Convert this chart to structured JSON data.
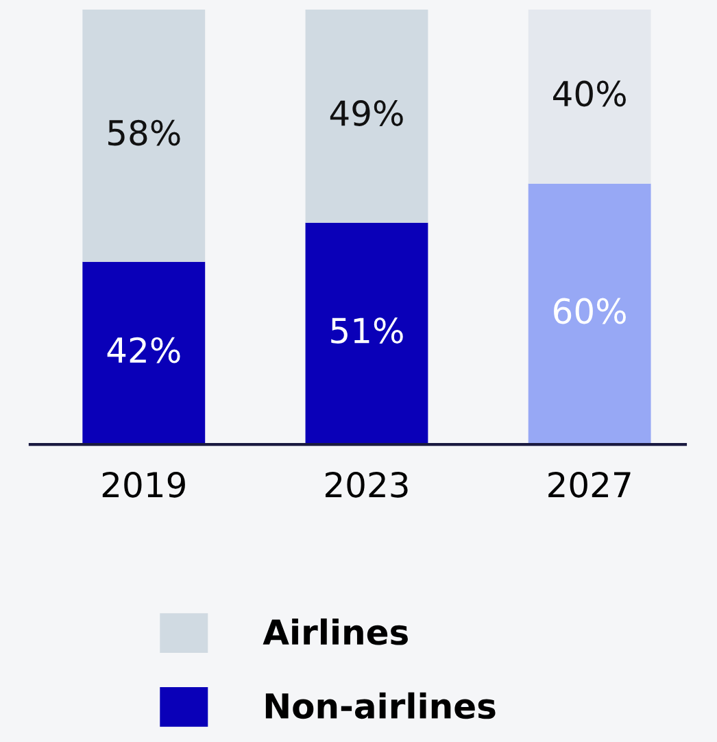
{
  "chart_data": {
    "type": "bar",
    "stacked": true,
    "data_labels": true,
    "legend": "bottom",
    "grid": false,
    "categories": [
      "2019",
      "2023",
      "2027"
    ],
    "series": [
      {
        "name": "Non-airlines",
        "color": "#0a00b8",
        "colors": [
          "#0a00b8",
          "#0a00b8",
          "#97a8f5"
        ],
        "values": [
          42,
          51,
          60
        ],
        "value_labels": [
          "42%",
          "51%",
          "60%"
        ]
      },
      {
        "name": "Airlines",
        "color": "#d0dae2",
        "colors": [
          "#d0dae2",
          "#d0dae2",
          "#e4e8ee"
        ],
        "values": [
          58,
          49,
          40
        ],
        "value_labels": [
          "58%",
          "49%",
          "40%"
        ]
      }
    ]
  }
}
